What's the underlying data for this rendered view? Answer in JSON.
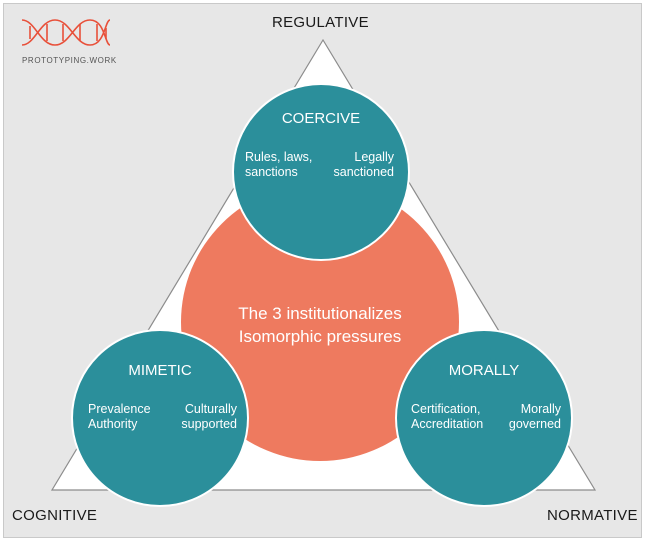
{
  "corners": {
    "top": "REGULATIVE",
    "left": "COGNITIVE",
    "right": "NORMATIVE"
  },
  "logo": {
    "text": "PROTOTYPING.WORK",
    "icon": "dna-logo-icon"
  },
  "center": {
    "line1": "The 3 institutionalizes",
    "line2": "Isomorphic pressures"
  },
  "circles": {
    "top": {
      "title": "COERCIVE",
      "left_line1": "Rules, laws,",
      "left_line2": "sanctions",
      "right_line1": "Legally",
      "right_line2": "sanctioned"
    },
    "left": {
      "title": "MIMETIC",
      "left_line1": "Prevalence",
      "left_line2": "Authority",
      "right_line1": "Culturally",
      "right_line2": "supported"
    },
    "right": {
      "title": "MORALLY",
      "left_line1": "Certification,",
      "left_line2": "Accreditation",
      "right_line1": "Morally",
      "right_line2": "governed"
    }
  },
  "colors": {
    "teal": "#2b8f9b",
    "coral": "#ee7a5f",
    "triangle": "#ffffff",
    "background": "#e7e7e7",
    "logo": "#e8503a"
  }
}
